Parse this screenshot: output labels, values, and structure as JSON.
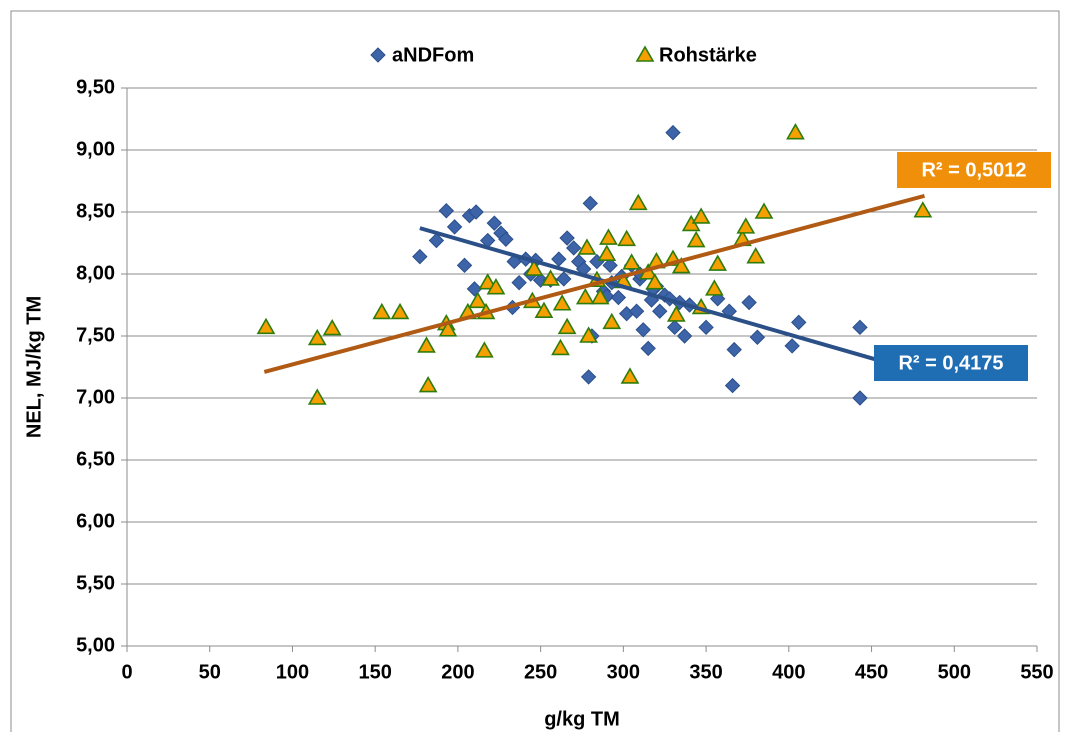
{
  "chart_data": {
    "type": "scatter",
    "x_label": "g/kg TM",
    "y_label": "NEL, MJ/kg TM",
    "xlim": [
      0,
      550
    ],
    "xticks": [
      0,
      50,
      100,
      150,
      200,
      250,
      300,
      350,
      400,
      450,
      500,
      550
    ],
    "ylim": [
      5,
      9.5
    ],
    "yticks": [
      {
        "value": 5,
        "label": "5,00"
      },
      {
        "value": 5.5,
        "label": "5,50"
      },
      {
        "value": 6,
        "label": "6,00"
      },
      {
        "value": 6.5,
        "label": "6,50"
      },
      {
        "value": 7,
        "label": "7,00"
      },
      {
        "value": 7.5,
        "label": "7,50"
      },
      {
        "value": 8,
        "label": "8,00"
      },
      {
        "value": 8.5,
        "label": "8,50"
      },
      {
        "value": 9,
        "label": "9,00"
      },
      {
        "value": 9.5,
        "label": "9,50"
      }
    ],
    "grid": true,
    "series": [
      {
        "name": "aNDFom",
        "marker": "diamond",
        "color": "#3d64a8",
        "x": [
          177,
          187,
          193,
          198,
          204,
          207,
          211,
          210,
          218,
          222,
          226,
          229,
          234,
          233,
          237,
          241,
          244,
          247,
          250,
          256,
          261,
          266,
          270,
          273,
          276,
          280,
          281,
          279,
          284,
          288,
          290,
          293,
          297,
          299,
          302,
          305,
          308,
          310,
          312,
          315,
          317,
          320,
          322,
          325,
          328,
          330,
          331,
          334,
          337,
          350,
          357,
          364,
          366,
          367,
          376,
          381,
          402,
          406,
          443,
          443,
          292,
          310,
          318,
          264,
          340
        ],
        "values": [
          8.14,
          8.27,
          8.51,
          8.38,
          8.07,
          8.47,
          8.5,
          7.88,
          8.27,
          8.41,
          8.33,
          8.28,
          8.1,
          7.73,
          7.93,
          8.12,
          8.0,
          8.11,
          7.95,
          7.95,
          8.12,
          8.29,
          8.21,
          8.1,
          8.04,
          8.57,
          7.5,
          7.17,
          8.1,
          7.86,
          7.82,
          7.93,
          7.81,
          7.98,
          7.68,
          8.07,
          7.7,
          7.96,
          7.55,
          7.4,
          7.79,
          7.9,
          7.7,
          7.83,
          7.8,
          9.14,
          7.57,
          7.77,
          7.5,
          7.57,
          7.8,
          7.7,
          7.1,
          7.39,
          7.77,
          7.49,
          7.42,
          7.61,
          7.57,
          7.0,
          8.07,
          8.0,
          7.88,
          7.96,
          7.75
        ],
        "trendline": {
          "x": [
            177,
            458
          ],
          "y": [
            8.37,
            7.29
          ],
          "color": "#2b5088",
          "r2_label": "R² = 0,4175",
          "r2_color": "#1f6db3"
        }
      },
      {
        "name": "Rohstärke",
        "marker": "triangle",
        "color": "#f5a000",
        "x": [
          84,
          115,
          115,
          124,
          154,
          165,
          181,
          182,
          193,
          194,
          206,
          212,
          216,
          217,
          218,
          223,
          245,
          246,
          252,
          256,
          262,
          263,
          266,
          277,
          278,
          279,
          284,
          286,
          290,
          291,
          293,
          300,
          302,
          304,
          305,
          309,
          315,
          319,
          320,
          330,
          332,
          335,
          341,
          344,
          347,
          347,
          355,
          357,
          372,
          374,
          380,
          385,
          404,
          481
        ],
        "values": [
          7.57,
          7.48,
          7.0,
          7.56,
          7.69,
          7.69,
          7.42,
          7.1,
          7.6,
          7.55,
          7.69,
          7.78,
          7.38,
          7.69,
          7.93,
          7.89,
          7.78,
          8.04,
          7.7,
          7.96,
          7.4,
          7.76,
          7.57,
          7.81,
          8.21,
          7.5,
          7.95,
          7.81,
          8.16,
          8.29,
          7.61,
          7.94,
          8.28,
          7.17,
          8.09,
          8.57,
          8.01,
          7.93,
          8.1,
          8.12,
          7.67,
          8.06,
          8.4,
          8.27,
          8.46,
          7.73,
          7.88,
          8.08,
          8.28,
          8.38,
          8.14,
          8.5,
          9.14,
          8.51
        ],
        "trendline": {
          "x": [
            83,
            482
          ],
          "y": [
            7.21,
            8.63
          ],
          "color": "#b05a14",
          "r2_label": "R² = 0,5012",
          "r2_color": "#f0900a"
        }
      }
    ]
  }
}
